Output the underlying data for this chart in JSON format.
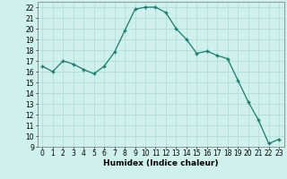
{
  "x": [
    0,
    1,
    2,
    3,
    4,
    5,
    6,
    7,
    8,
    9,
    10,
    11,
    12,
    13,
    14,
    15,
    16,
    17,
    18,
    19,
    20,
    21,
    22,
    23
  ],
  "y": [
    16.5,
    16.0,
    17.0,
    16.7,
    16.2,
    15.8,
    16.5,
    17.8,
    19.8,
    21.8,
    22.0,
    22.0,
    21.5,
    20.0,
    19.0,
    17.7,
    17.9,
    17.5,
    17.2,
    15.2,
    13.2,
    11.5,
    9.3,
    9.7
  ],
  "xlabel": "Humidex (Indice chaleur)",
  "xlim": [
    -0.5,
    23.5
  ],
  "ylim": [
    9,
    22.5
  ],
  "yticks": [
    9,
    10,
    11,
    12,
    13,
    14,
    15,
    16,
    17,
    18,
    19,
    20,
    21,
    22
  ],
  "xticks": [
    0,
    1,
    2,
    3,
    4,
    5,
    6,
    7,
    8,
    9,
    10,
    11,
    12,
    13,
    14,
    15,
    16,
    17,
    18,
    19,
    20,
    21,
    22,
    23
  ],
  "line_color": "#1a7a6e",
  "marker": "+",
  "bg_color": "#cff0eb",
  "grid_color": "#aaddd7",
  "label_fontsize": 6.5,
  "tick_fontsize": 5.5
}
